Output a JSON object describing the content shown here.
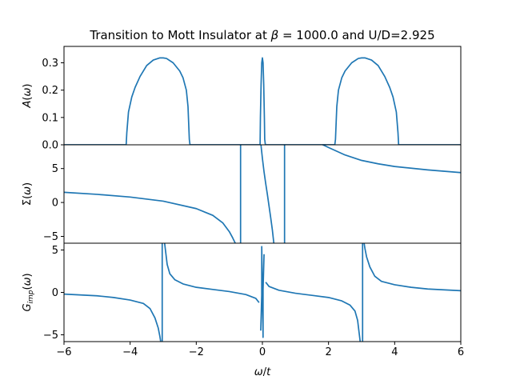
{
  "chart_data": {
    "type": "line",
    "title": "Transition to Mott Insulator at β = 1000.0 and U/D=2.925",
    "title_parts": {
      "prefix": "Transition to Mott Insulator at ",
      "beta_symbol": "β",
      "suffix": " = 1000.0 and U/D=2.925"
    },
    "xlabel": "ω/t",
    "xlim": [
      -6,
      6
    ],
    "x_ticks": [
      -6,
      -4,
      -2,
      0,
      2,
      4,
      6
    ],
    "x_tick_labels": [
      "−6",
      "−4",
      "−2",
      "0",
      "2",
      "4",
      "6"
    ],
    "color": "#1f77b4",
    "grid": false,
    "panels": [
      {
        "name": "spectral-function",
        "ylabel": "A(ω)",
        "ylim": [
          0,
          0.36
        ],
        "y_ticks": [
          0.0,
          0.1,
          0.2,
          0.3
        ],
        "y_tick_labels": [
          "0.0",
          "0.1",
          "0.2",
          "0.3"
        ],
        "series": [
          {
            "x": [
              -6,
              -4.12,
              -4.1,
              -4.05,
              -3.95,
              -3.85,
              -3.7,
              -3.5,
              -3.3,
              -3.1,
              -3.0,
              -2.9,
              -2.7,
              -2.5,
              -2.4,
              -2.3,
              -2.25,
              -2.23,
              -2.21,
              -2.19,
              -0.07,
              -0.06,
              -0.04,
              -0.02,
              0.0,
              0.02,
              0.04,
              0.06,
              0.07,
              0.09,
              2.19,
              2.21,
              2.23,
              2.25,
              2.3,
              2.4,
              2.5,
              2.7,
              2.9,
              3.0,
              3.1,
              3.3,
              3.5,
              3.7,
              3.85,
              3.95,
              4.05,
              4.1,
              4.12,
              6
            ],
            "y": [
              0,
              0,
              0.045,
              0.12,
              0.175,
              0.21,
              0.25,
              0.29,
              0.31,
              0.318,
              0.318,
              0.316,
              0.3,
              0.27,
              0.245,
              0.2,
              0.14,
              0.08,
              0.02,
              0,
              0,
              0.1,
              0.22,
              0.3,
              0.318,
              0.3,
              0.22,
              0.1,
              0.02,
              0,
              0,
              0.02,
              0.08,
              0.14,
              0.2,
              0.245,
              0.27,
              0.3,
              0.316,
              0.318,
              0.318,
              0.31,
              0.29,
              0.25,
              0.21,
              0.175,
              0.12,
              0.045,
              0,
              0
            ]
          }
        ]
      },
      {
        "name": "self-energy",
        "ylabel": "Σ(ω)",
        "ylim": [
          -6,
          8.5
        ],
        "y_ticks": [
          -5,
          0,
          5
        ],
        "y_tick_labels": [
          "−5",
          "0",
          "5"
        ],
        "segments": [
          {
            "x": [
              -6,
              -5,
              -4,
              -3,
              -2,
              -1.5,
              -1.2,
              -1.0,
              -0.9,
              -0.8
            ],
            "y": [
              1.5,
              1.2,
              0.8,
              0.2,
              -0.9,
              -1.9,
              -3.0,
              -4.3,
              -5.2,
              -6.2
            ]
          },
          {
            "x": [
              -0.66,
              -0.66
            ],
            "y": [
              -6.2,
              8.8
            ]
          },
          {
            "x": [
              -0.05,
              0.0,
              0.05,
              0.1,
              0.15,
              0.2,
              0.25,
              0.3,
              0.35
            ],
            "y": [
              8.8,
              6.5,
              4.5,
              2.8,
              1.2,
              -0.5,
              -2.2,
              -4.0,
              -6.2
            ]
          },
          {
            "x": [
              0.67,
              0.67
            ],
            "y": [
              -6.2,
              8.8
            ]
          },
          {
            "x": [
              1.7,
              2.0,
              2.5,
              3.0,
              3.5,
              4.0,
              5.0,
              6.0
            ],
            "y": [
              8.8,
              8.1,
              7.0,
              6.2,
              5.7,
              5.3,
              4.8,
              4.4
            ]
          }
        ]
      },
      {
        "name": "impurity-green-function",
        "ylabel": "G_imp(ω)",
        "ylim": [
          -5.8,
          5.8
        ],
        "y_ticks": [
          -5,
          0,
          5
        ],
        "y_tick_labels": [
          "−5",
          "0",
          "5"
        ],
        "segments": [
          {
            "x": [
              -6,
              -5,
              -4.5,
              -4,
              -3.6,
              -3.4,
              -3.25,
              -3.15,
              -3.1,
              -3.06
            ],
            "y": [
              -0.2,
              -0.4,
              -0.6,
              -0.9,
              -1.3,
              -1.9,
              -3.0,
              -4.2,
              -5.2,
              -6.2
            ]
          },
          {
            "x": [
              -3.03,
              -3.03
            ],
            "y": [
              -6.2,
              6.2
            ]
          },
          {
            "x": [
              -2.97,
              -2.92,
              -2.88,
              -2.8,
              -2.65,
              -2.4,
              -2.0,
              -1.5,
              -1.0,
              -0.5,
              -0.2,
              -0.1
            ],
            "y": [
              6.2,
              4.6,
              3.3,
              2.2,
              1.5,
              1.0,
              0.6,
              0.35,
              0.1,
              -0.25,
              -0.7,
              -1.2
            ]
          },
          {
            "x": [
              -0.05,
              -0.02,
              -0.02,
              0.0,
              0.02,
              0.02,
              0.05
            ],
            "y": [
              -4.5,
              -0.3,
              5.4,
              0.0,
              -5.3,
              0.3,
              4.5
            ]
          },
          {
            "x": [
              0.1,
              0.2,
              0.5,
              1.0,
              1.5,
              2.0,
              2.4,
              2.65,
              2.8,
              2.88,
              2.92,
              2.97
            ],
            "y": [
              1.2,
              0.7,
              0.25,
              -0.1,
              -0.35,
              -0.6,
              -1.0,
              -1.5,
              -2.2,
              -3.3,
              -4.6,
              -6.2
            ]
          },
          {
            "x": [
              3.03,
              3.03
            ],
            "y": [
              -6.2,
              6.2
            ]
          },
          {
            "x": [
              3.06,
              3.1,
              3.15,
              3.25,
              3.4,
              3.6,
              4.0,
              4.5,
              5.0,
              6.0
            ],
            "y": [
              6.2,
              5.2,
              4.2,
              3.0,
              1.9,
              1.3,
              0.9,
              0.6,
              0.4,
              0.2
            ]
          }
        ]
      }
    ]
  }
}
